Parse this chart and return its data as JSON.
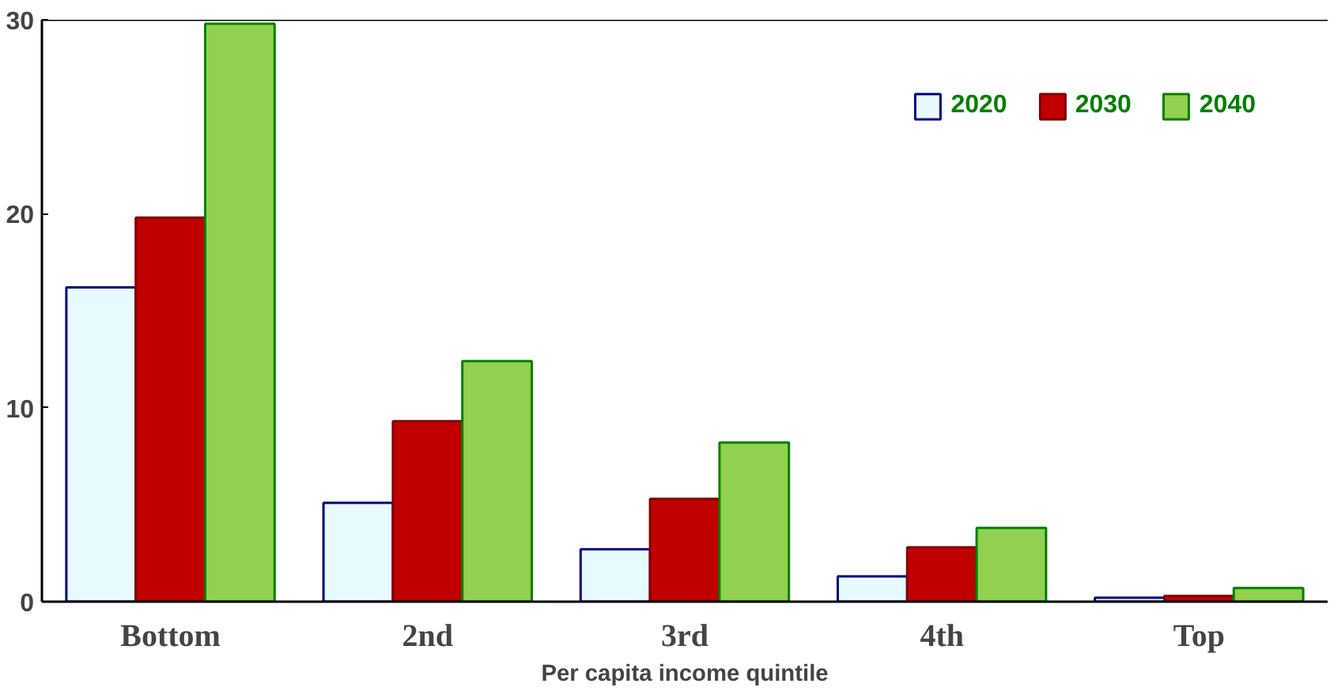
{
  "chart_data": {
    "type": "bar",
    "xlabel": "Per capita income quintile",
    "categories": [
      "Bottom",
      "2nd",
      "3rd",
      "4th",
      "Top"
    ],
    "series": [
      {
        "name": "2020",
        "color": "#e6faff",
        "values": [
          16.2,
          5.1,
          2.7,
          1.3,
          0.2
        ]
      },
      {
        "name": "2030",
        "color": "#c00000",
        "values": [
          19.8,
          9.3,
          5.3,
          2.8,
          0.3
        ]
      },
      {
        "name": "2040",
        "color": "#92d050",
        "values": [
          29.8,
          12.4,
          8.2,
          3.8,
          0.7
        ]
      }
    ],
    "ylim": [
      0,
      30
    ],
    "yticks": [
      0,
      10,
      20,
      30
    ],
    "grid": false,
    "legend": "top right"
  }
}
